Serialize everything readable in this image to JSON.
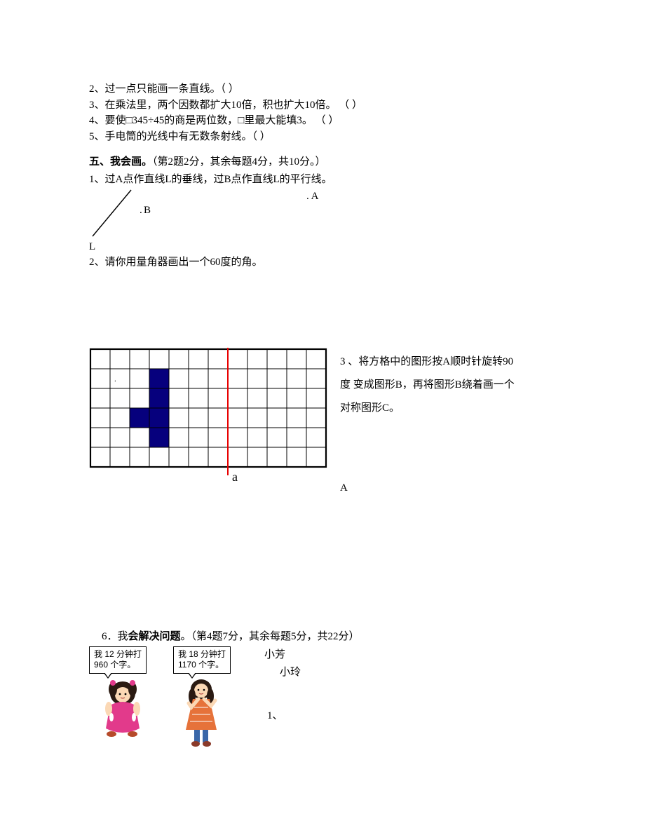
{
  "questions_top": [
    "2、过一点只能画一条直线。（  ）",
    "3、在乘法里，两个因数都扩大10倍，积也扩大10倍。 （  ）",
    "4、要使□345÷45的商是两位数，□里最大能填3。 （  ）",
    "5、手电筒的光线中有无数条射线。（  ）"
  ],
  "section5": {
    "title_bold": "五、我会画。",
    "title_rest": "（第2题2分，其余每题4分，共10分。）",
    "q1": "1、过A点作直线L的垂线，过B点作直线L的平行线。",
    "label_A": ". A",
    "label_B": "B",
    "label_Bdot": ".",
    "label_L": "L",
    "q2": "2、请你用量角器画出一个60度的角。",
    "q3": "3 、将方格中的图形按A顺时针旋转90度 变成图形B，再将图形B绕着画一个对称图形C。",
    "q3_letter": "A",
    "grid": {
      "cols": 12,
      "rows": 6,
      "cell": 28,
      "border_color": "#000000",
      "line_color": "#000000",
      "fill_color": "#06007d",
      "red_line_color": "#e80000",
      "red_line_col": 7,
      "axis_label": "a",
      "filled_cells": [
        [
          3,
          1
        ],
        [
          3,
          2
        ],
        [
          2,
          3
        ],
        [
          3,
          3
        ],
        [
          3,
          4
        ]
      ]
    }
  },
  "section6": {
    "title_prefix": "6．我",
    "title_bold": "会解决问题",
    "title_rest": "。（第4题7分，其余每题5分，共22分）",
    "bubble1": "我 12 分钟打\n960 个字。",
    "bubble2": "我 18 分钟打\n1170 个字。",
    "name1": "小芳",
    "name2": "小玲",
    "subq": "1、",
    "girl1_colors": {
      "dress": "#e23a8b",
      "hair": "#2a1a12",
      "skin": "#fbd8b5",
      "shoe": "#b64a2a"
    },
    "girl2_colors": {
      "dress": "#e6723a",
      "hair": "#2a1a12",
      "skin": "#fbd8b5",
      "shoe": "#8a3a2a",
      "pants": "#3a67a8"
    }
  }
}
